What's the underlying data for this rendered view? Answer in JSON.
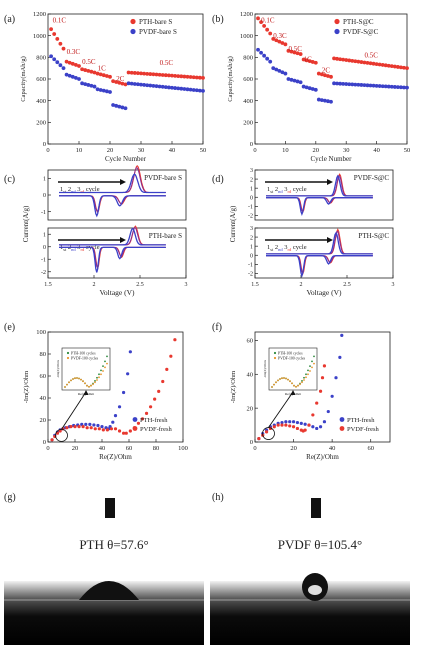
{
  "chart_data": [
    {
      "id": "a",
      "panel_label": "(a)",
      "type": "scatter",
      "xlabel": "Cycle Number",
      "ylabel": "Capacity(mAh/g)",
      "xlim": [
        0,
        50
      ],
      "ylim": [
        0,
        1200
      ],
      "xticks": [
        0,
        10,
        20,
        30,
        40,
        50
      ],
      "yticks": [
        0,
        200,
        400,
        600,
        800,
        1000,
        1200
      ],
      "legend_position": "top-right",
      "rate_labels": [
        {
          "text": "0.1C",
          "x": 1.5,
          "y": 1120
        },
        {
          "text": "0.3C",
          "x": 6,
          "y": 830
        },
        {
          "text": "0.5C",
          "x": 11,
          "y": 740
        },
        {
          "text": "1C",
          "x": 16,
          "y": 680
        },
        {
          "text": "2C",
          "x": 22,
          "y": 580
        },
        {
          "text": "0.5C",
          "x": 36,
          "y": 730
        }
      ],
      "series": [
        {
          "name": "PTH-bare S",
          "color": "#e8382f",
          "segments": [
            [
              1,
              5,
              1060,
              880
            ],
            [
              6,
              10,
              760,
              720
            ],
            [
              11,
              15,
              690,
              660
            ],
            [
              16,
              20,
              650,
              620
            ],
            [
              21,
              25,
              580,
              550
            ],
            [
              26,
              50,
              660,
              610
            ]
          ]
        },
        {
          "name": "PVDF-bare S",
          "color": "#3b41c8",
          "segments": [
            [
              1,
              5,
              810,
              700
            ],
            [
              6,
              10,
              640,
              600
            ],
            [
              11,
              15,
              560,
              530
            ],
            [
              16,
              20,
              505,
              480
            ],
            [
              21,
              25,
              360,
              330
            ],
            [
              26,
              50,
              560,
              490
            ]
          ]
        }
      ]
    },
    {
      "id": "b",
      "panel_label": "(b)",
      "type": "scatter",
      "xlabel": "Cycle Number",
      "ylabel": "Capacity(mAh/g)",
      "xlim": [
        0,
        50
      ],
      "ylim": [
        0,
        1200
      ],
      "xticks": [
        0,
        10,
        20,
        30,
        40,
        50
      ],
      "yticks": [
        0,
        200,
        400,
        600,
        800,
        1000,
        1200
      ],
      "legend_position": "top-right",
      "rate_labels": [
        {
          "text": "0.1C",
          "x": 2,
          "y": 1120
        },
        {
          "text": "0.3C",
          "x": 6,
          "y": 980
        },
        {
          "text": "0.5C",
          "x": 11,
          "y": 860
        },
        {
          "text": "1C",
          "x": 16,
          "y": 760
        },
        {
          "text": "2C",
          "x": 22,
          "y": 660
        },
        {
          "text": "0.5C",
          "x": 36,
          "y": 800
        }
      ],
      "series": [
        {
          "name": "PTH-S@C",
          "color": "#e8382f",
          "segments": [
            [
              1,
              5,
              1160,
              1020
            ],
            [
              6,
              10,
              970,
              920
            ],
            [
              11,
              15,
              860,
              830
            ],
            [
              16,
              20,
              780,
              750
            ],
            [
              21,
              25,
              650,
              620
            ],
            [
              26,
              50,
              790,
              700
            ]
          ]
        },
        {
          "name": "PVDF-S@C",
          "color": "#3b41c8",
          "segments": [
            [
              1,
              5,
              870,
              760
            ],
            [
              6,
              10,
              700,
              650
            ],
            [
              11,
              15,
              600,
              570
            ],
            [
              16,
              20,
              530,
              500
            ],
            [
              21,
              25,
              410,
              390
            ],
            [
              26,
              50,
              560,
              520
            ]
          ]
        }
      ]
    },
    {
      "id": "c",
      "panel_label": "(c)",
      "type": "line",
      "xlabel": "Voltage  (V)",
      "ylabel": "Current(A/g)",
      "xlim": [
        1.5,
        3.0
      ],
      "xticks": [
        1.5,
        2.0,
        2.5,
        3.0
      ],
      "subplots": [
        {
          "label": "PVDF-bare S",
          "ylim": [
            -1.5,
            1.5
          ],
          "yticks": [
            -1,
            0,
            1
          ],
          "cycle_label": [
            "1",
            "st",
            " ",
            "2",
            "nd",
            " ",
            "3",
            "rd",
            " cycle"
          ],
          "red_peaks": [
            [
              2.3,
              -0.5,
              0.04
            ],
            [
              2.04,
              -1.0,
              0.03
            ],
            [
              2.47,
              1.6,
              0.05
            ]
          ],
          "blue_peaks": [
            [
              2.28,
              -0.6,
              0.04
            ],
            [
              2.03,
              -1.2,
              0.03
            ],
            [
              2.44,
              1.1,
              0.05
            ]
          ]
        },
        {
          "label": "PTH-bare S",
          "ylim": [
            -2.5,
            1.5
          ],
          "yticks": [
            -2,
            -1,
            0,
            1
          ],
          "cycle_label": [
            "1",
            "st",
            " ",
            "2",
            "nd",
            " ",
            "3",
            "rd",
            " cycle"
          ],
          "red_peaks": [
            [
              2.3,
              -0.8,
              0.03
            ],
            [
              2.04,
              -1.7,
              0.025
            ],
            [
              2.45,
              1.5,
              0.04
            ]
          ],
          "blue_peaks": [
            [
              2.28,
              -0.9,
              0.03
            ],
            [
              2.03,
              -2.0,
              0.025
            ],
            [
              2.42,
              1.3,
              0.04
            ]
          ]
        }
      ]
    },
    {
      "id": "d",
      "panel_label": "(d)",
      "type": "line",
      "xlabel": "Voltage  (V)",
      "ylabel": "Current(A/g)",
      "xlim": [
        1.5,
        3.0
      ],
      "xticks": [
        1.5,
        2.0,
        2.5,
        3.0
      ],
      "subplots": [
        {
          "label": "PVDF-S@C",
          "ylim": [
            -2.5,
            3.0
          ],
          "yticks": [
            -2,
            -1,
            0,
            1,
            2,
            3
          ],
          "cycle_label": [
            "1",
            "st",
            " ",
            "2",
            "nd",
            " ",
            "3",
            "rd",
            " cycle"
          ],
          "red_peaks": [
            [
              2.32,
              -0.6,
              0.03
            ],
            [
              2.02,
              -1.6,
              0.025
            ],
            [
              2.42,
              2.4,
              0.035
            ]
          ],
          "blue_peaks": [
            [
              2.3,
              -0.7,
              0.03
            ],
            [
              2.01,
              -1.8,
              0.025
            ],
            [
              2.4,
              2.2,
              0.035
            ]
          ]
        },
        {
          "label": "PTH-S@C",
          "ylim": [
            -2.5,
            3.0
          ],
          "yticks": [
            -2,
            -1,
            0,
            1,
            2,
            3
          ],
          "cycle_label": [
            "1",
            "st",
            " ",
            "2",
            "nd",
            " ",
            "3",
            "rd",
            " cycle"
          ],
          "red_peaks": [
            [
              2.32,
              -0.8,
              0.03
            ],
            [
              2.02,
              -2.0,
              0.025
            ],
            [
              2.4,
              2.7,
              0.035
            ]
          ],
          "blue_peaks": [
            [
              2.3,
              -0.9,
              0.03
            ],
            [
              2.01,
              -2.2,
              0.025
            ],
            [
              2.38,
              2.3,
              0.035
            ]
          ]
        }
      ]
    },
    {
      "id": "e",
      "panel_label": "(e)",
      "type": "scatter",
      "xlabel": "Re(Z)/Ohm",
      "ylabel": "-Im(Z)/Ohm",
      "xlim": [
        0,
        100
      ],
      "ylim": [
        0,
        100
      ],
      "xticks": [
        0,
        20,
        40,
        60,
        80,
        100
      ],
      "yticks": [
        0,
        20,
        40,
        60,
        80,
        100
      ],
      "legend_position": "bottom-right",
      "inset_legend": [
        "PTH-100 cycles",
        "PVDF-100 cycles"
      ],
      "inset_xlabel": "Re(Z)/Ohm",
      "inset_ylabel": "-Im(Z)/Ohm",
      "series": [
        {
          "name": "PTH-fresh",
          "color": "#3b41c8",
          "points": [
            [
              3,
              2
            ],
            [
              5,
              6
            ],
            [
              7,
              9
            ],
            [
              9,
              11
            ],
            [
              11,
              12
            ],
            [
              13,
              13
            ],
            [
              16,
              14
            ],
            [
              19,
              15
            ],
            [
              22,
              15.5
            ],
            [
              25,
              16
            ],
            [
              28,
              16
            ],
            [
              31,
              16
            ],
            [
              34,
              15.5
            ],
            [
              37,
              15
            ],
            [
              40,
              14
            ],
            [
              43,
              13
            ],
            [
              45,
              12
            ],
            [
              46,
              14
            ],
            [
              48,
              18
            ],
            [
              50,
              24
            ],
            [
              53,
              32
            ],
            [
              56,
              45
            ],
            [
              59,
              62
            ],
            [
              61,
              82
            ]
          ]
        },
        {
          "name": "PVDF-fresh",
          "color": "#e8382f",
          "points": [
            [
              3,
              2
            ],
            [
              5,
              5
            ],
            [
              7,
              8
            ],
            [
              9,
              10
            ],
            [
              11,
              12
            ],
            [
              14,
              13
            ],
            [
              17,
              14
            ],
            [
              20,
              14
            ],
            [
              23,
              14
            ],
            [
              26,
              14
            ],
            [
              29,
              13
            ],
            [
              32,
              13
            ],
            [
              35,
              12
            ],
            [
              38,
              12
            ],
            [
              41,
              11
            ],
            [
              44,
              11
            ],
            [
              47,
              12
            ],
            [
              50,
              12
            ],
            [
              53,
              10
            ],
            [
              56,
              8
            ],
            [
              58,
              8
            ],
            [
              61,
              10
            ],
            [
              64,
              13
            ],
            [
              67,
              17
            ],
            [
              70,
              21
            ],
            [
              73,
              26
            ],
            [
              76,
              32
            ],
            [
              79,
              39
            ],
            [
              82,
              46
            ],
            [
              85,
              55
            ],
            [
              88,
              66
            ],
            [
              91,
              78
            ],
            [
              94,
              93
            ]
          ]
        }
      ],
      "inset_series": [
        {
          "name": "PTH-100 cycles",
          "color": "#2e8b3e"
        },
        {
          "name": "PVDF-100 cycles",
          "color": "#e8962f"
        }
      ]
    },
    {
      "id": "f",
      "panel_label": "(f)",
      "type": "scatter",
      "xlabel": "Re(Z)/Ohm",
      "ylabel": "-Im(Z)/Ohm",
      "xlim": [
        0,
        70
      ],
      "ylim": [
        0,
        65
      ],
      "xticks": [
        0,
        20,
        40,
        60
      ],
      "yticks": [
        0,
        20,
        40,
        60
      ],
      "legend_position": "bottom-right",
      "inset_legend": [
        "PTH-100 cycles",
        "PVDF-100 cycles"
      ],
      "inset_xlabel": "Re(Z)/Ohm",
      "inset_ylabel": "-Im(Z)/Ohm",
      "series": [
        {
          "name": "PTH-fresh",
          "color": "#3b41c8",
          "points": [
            [
              2,
              2
            ],
            [
              4,
              5
            ],
            [
              6,
              7
            ],
            [
              8,
              9
            ],
            [
              10,
              10
            ],
            [
              12,
              11
            ],
            [
              14,
              11.5
            ],
            [
              16,
              12
            ],
            [
              18,
              12
            ],
            [
              20,
              12
            ],
            [
              22,
              11.5
            ],
            [
              24,
              11
            ],
            [
              26,
              10.5
            ],
            [
              28,
              10
            ],
            [
              30,
              9
            ],
            [
              32,
              8
            ],
            [
              34,
              9
            ],
            [
              36,
              12
            ],
            [
              38,
              18
            ],
            [
              40,
              27
            ],
            [
              42,
              38
            ],
            [
              44,
              50
            ],
            [
              45,
              63
            ]
          ]
        },
        {
          "name": "PVDF-fresh",
          "color": "#e8382f",
          "points": [
            [
              2,
              2
            ],
            [
              4,
              4
            ],
            [
              6,
              6
            ],
            [
              8,
              8
            ],
            [
              10,
              9
            ],
            [
              12,
              10
            ],
            [
              14,
              10
            ],
            [
              16,
              10
            ],
            [
              18,
              9.5
            ],
            [
              20,
              9
            ],
            [
              22,
              8
            ],
            [
              24,
              7
            ],
            [
              25,
              6.5
            ],
            [
              26,
              7
            ],
            [
              28,
              10
            ],
            [
              30,
              16
            ],
            [
              32,
              23
            ],
            [
              34,
              30
            ],
            [
              35,
              38
            ],
            [
              36,
              45
            ]
          ]
        }
      ],
      "inset_series": [
        {
          "name": "PTH-100 cycles",
          "color": "#2e8b3e"
        },
        {
          "name": "PVDF-100 cycles",
          "color": "#e8962f"
        }
      ]
    }
  ],
  "photos": [
    {
      "id": "g",
      "panel_label": "(g)",
      "caption": "PTH θ=57.6°",
      "angle_deg": 57.6
    },
    {
      "id": "h",
      "panel_label": "(h)",
      "caption": "PVDF θ=105.4°",
      "angle_deg": 105.4
    }
  ],
  "colors": {
    "red": "#e8382f",
    "blue": "#3b41c8",
    "axis": "#222222"
  }
}
